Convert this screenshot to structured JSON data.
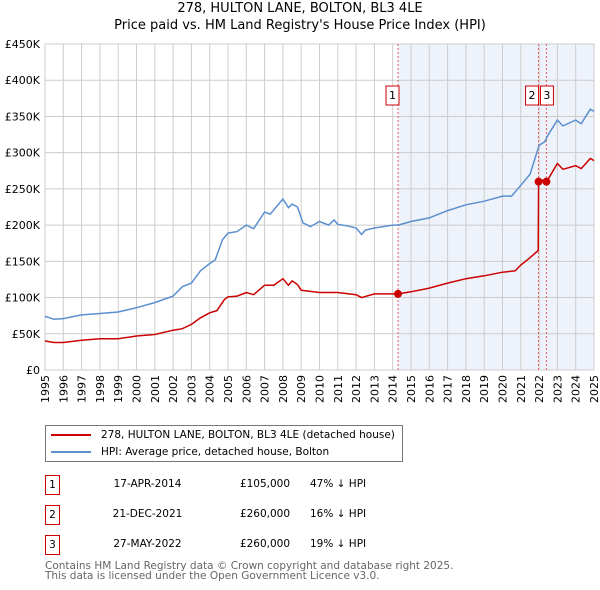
{
  "title_line1": "278, HULTON LANE, BOLTON, BL3 4LE",
  "title_line2": "Price paid vs. HM Land Registry's House Price Index (HPI)",
  "chart_data": {
    "type": "line",
    "title": "278, HULTON LANE, BOLTON, BL3 4LE — Price paid vs. HM Land Registry's House Price Index (HPI)",
    "xlim": [
      1995,
      2025
    ],
    "ylim": [
      0,
      450000
    ],
    "grid": true,
    "x_ticks": [
      "1995",
      "1996",
      "1997",
      "1998",
      "1999",
      "2000",
      "2001",
      "2002",
      "2003",
      "2004",
      "2005",
      "2006",
      "2007",
      "2008",
      "2009",
      "2010",
      "2011",
      "2012",
      "2013",
      "2014",
      "2015",
      "2016",
      "2017",
      "2018",
      "2019",
      "2020",
      "2021",
      "2022",
      "2023",
      "2024",
      "2025"
    ],
    "y_ticks": [
      {
        "v": 0,
        "label": "£0"
      },
      {
        "v": 50000,
        "label": "£50K"
      },
      {
        "v": 100000,
        "label": "£100K"
      },
      {
        "v": 150000,
        "label": "£150K"
      },
      {
        "v": 200000,
        "label": "£200K"
      },
      {
        "v": 250000,
        "label": "£250K"
      },
      {
        "v": 300000,
        "label": "£300K"
      },
      {
        "v": 350000,
        "label": "£350K"
      },
      {
        "v": 400000,
        "label": "£400K"
      },
      {
        "v": 450000,
        "label": "£450K"
      }
    ],
    "shaded_from": 2014.29,
    "series": [
      {
        "name": "278, HULTON LANE, BOLTON, BL3 4LE (detached house)",
        "color": "#cc0000",
        "x": [
          1995,
          1995.5,
          1996,
          1997,
          1998,
          1999,
          2000,
          2001,
          2002,
          2002.5,
          2003,
          2003.5,
          2004,
          2004.4,
          2004.8,
          2005,
          2005.5,
          2006,
          2006.4,
          2007,
          2007.5,
          2008,
          2008.3,
          2008.5,
          2008.8,
          2009,
          2010,
          2011,
          2012,
          2012.3,
          2013,
          2014.29,
          2015,
          2016,
          2017,
          2018,
          2019,
          2020,
          2020.7,
          2021,
          2021.5,
          2021.95,
          2021.97,
          2022.2,
          2022.4,
          2022.6,
          2023,
          2023.3,
          2024,
          2024.3,
          2024.8,
          2025
        ],
        "y": [
          40000,
          38000,
          38000,
          41000,
          43000,
          43000,
          47000,
          49000,
          55000,
          57000,
          63000,
          72000,
          79000,
          82000,
          97000,
          101000,
          102000,
          107000,
          104000,
          117000,
          117000,
          126000,
          117000,
          123000,
          118000,
          110000,
          107000,
          107000,
          104000,
          100000,
          105000,
          105000,
          108000,
          113000,
          120000,
          126000,
          130000,
          135000,
          137000,
          145000,
          155000,
          165000,
          260000,
          262000,
          260000,
          268000,
          285000,
          277000,
          282000,
          278000,
          292000,
          289000
        ]
      },
      {
        "name": "HPI: Average price, detached house, Bolton",
        "color": "#5b8fd0",
        "x": [
          1995,
          1995.5,
          1996,
          1997,
          1998,
          1999,
          2000,
          2001,
          2002,
          2002.5,
          2003,
          2003.5,
          2004,
          2004.3,
          2004.7,
          2005,
          2005.5,
          2006,
          2006.4,
          2007,
          2007.3,
          2007.5,
          2008,
          2008.3,
          2008.5,
          2008.8,
          2009.1,
          2009.5,
          2010,
          2010.5,
          2010.8,
          2011,
          2011.5,
          2012,
          2012.3,
          2012.5,
          2013,
          2014,
          2014.3,
          2015,
          2016,
          2017,
          2018,
          2019,
          2020,
          2020.5,
          2021,
          2021.5,
          2022,
          2022.3,
          2022.5,
          2023,
          2023.3,
          2024,
          2024.3,
          2024.8,
          2025
        ],
        "y": [
          74000,
          70000,
          71000,
          76000,
          78000,
          80000,
          86000,
          93000,
          102000,
          115000,
          120000,
          137000,
          147000,
          152000,
          180000,
          189000,
          191000,
          200000,
          195000,
          218000,
          215000,
          221000,
          236000,
          224000,
          229000,
          225000,
          203000,
          198000,
          205000,
          200000,
          207000,
          201000,
          199000,
          196000,
          187000,
          193000,
          196000,
          200000,
          200000,
          205000,
          210000,
          220000,
          228000,
          233000,
          240000,
          240000,
          255000,
          270000,
          310000,
          315000,
          325000,
          345000,
          337000,
          345000,
          340000,
          360000,
          357000
        ]
      }
    ],
    "sales": [
      {
        "id": "1",
        "x": 2014.29,
        "y": 105000
      },
      {
        "id": "2",
        "x": 2021.97,
        "y": 260000
      },
      {
        "id": "3",
        "x": 2022.4,
        "y": 260000
      }
    ]
  },
  "legend": [
    {
      "label": "278, HULTON LANE, BOLTON, BL3 4LE (detached house)",
      "color": "#cc0000"
    },
    {
      "label": "HPI: Average price, detached house, Bolton",
      "color": "#5b8fd0"
    }
  ],
  "transactions": [
    {
      "id": "1",
      "date": "17-APR-2014",
      "price": "£105,000",
      "hpi": "47% ↓ HPI"
    },
    {
      "id": "2",
      "date": "21-DEC-2021",
      "price": "£260,000",
      "hpi": "16% ↓ HPI"
    },
    {
      "id": "3",
      "date": "27-MAY-2022",
      "price": "£260,000",
      "hpi": "19% ↓ HPI"
    }
  ],
  "footer_line1": "Contains HM Land Registry data © Crown copyright and database right 2025.",
  "footer_line2": "This data is licensed under the Open Government Licence v3.0."
}
